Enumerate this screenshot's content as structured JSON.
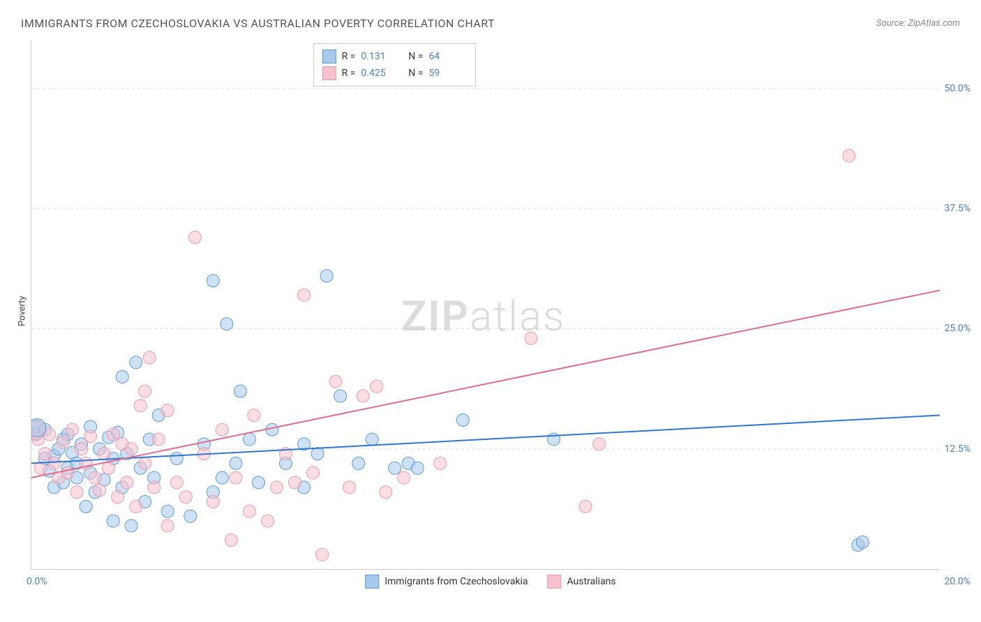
{
  "title": "IMMIGRANTS FROM CZECHOSLOVAKIA VS AUSTRALIAN POVERTY CORRELATION CHART",
  "source": "Source: ZipAtlas.com",
  "ylabel": "Poverty",
  "watermark_a": "ZIP",
  "watermark_b": "atlas",
  "chart": {
    "type": "scatter",
    "xlim": [
      0,
      20
    ],
    "ylim": [
      0,
      55
    ],
    "x_origin_label": "0.0%",
    "x_end_label": "20.0%",
    "y_ticks": [
      12.5,
      25.0,
      37.5,
      50.0
    ],
    "y_tick_labels": [
      "12.5%",
      "25.0%",
      "37.5%",
      "50.0%"
    ],
    "x_tick_positions": [
      2.5,
      5.0,
      7.5,
      10.0,
      12.5,
      15.0,
      17.5,
      20.0
    ],
    "grid_color": "#dddddd",
    "background_color": "#ffffff",
    "axis_color": "#cccccc",
    "tick_label_color": "#4a7ebb",
    "series": [
      {
        "name": "Immigrants from Czechoslovakia",
        "fill": "#a8c8ec",
        "stroke": "#5b9bd5",
        "fill_opacity": 0.55,
        "r_value": "0.131",
        "n_value": "64",
        "trend": {
          "x1": 0,
          "y1": 11.0,
          "x2": 20,
          "y2": 16.0,
          "color": "#2e75d6",
          "width": 2
        },
        "points": [
          [
            0.1,
            14.8
          ],
          [
            0.1,
            14.0
          ],
          [
            0.3,
            11.5
          ],
          [
            0.3,
            14.5
          ],
          [
            0.4,
            10.2
          ],
          [
            0.5,
            8.5
          ],
          [
            0.5,
            11.8
          ],
          [
            0.6,
            12.5
          ],
          [
            0.7,
            9.0
          ],
          [
            0.7,
            13.5
          ],
          [
            0.8,
            14.0
          ],
          [
            0.8,
            10.5
          ],
          [
            0.9,
            12.1
          ],
          [
            1.0,
            9.5
          ],
          [
            1.0,
            11.0
          ],
          [
            1.1,
            13.0
          ],
          [
            1.2,
            6.5
          ],
          [
            1.3,
            10.0
          ],
          [
            1.3,
            14.8
          ],
          [
            1.4,
            8.0
          ],
          [
            1.5,
            12.5
          ],
          [
            1.6,
            9.3
          ],
          [
            1.7,
            13.7
          ],
          [
            1.8,
            11.5
          ],
          [
            1.8,
            5.0
          ],
          [
            1.9,
            14.2
          ],
          [
            2.0,
            20.0
          ],
          [
            2.0,
            8.5
          ],
          [
            2.1,
            12.0
          ],
          [
            2.2,
            4.5
          ],
          [
            2.3,
            21.5
          ],
          [
            2.4,
            10.5
          ],
          [
            2.5,
            7.0
          ],
          [
            2.6,
            13.5
          ],
          [
            2.7,
            9.5
          ],
          [
            2.8,
            16.0
          ],
          [
            3.0,
            6.0
          ],
          [
            3.2,
            11.5
          ],
          [
            3.5,
            5.5
          ],
          [
            3.8,
            13.0
          ],
          [
            4.0,
            30.0
          ],
          [
            4.0,
            8.0
          ],
          [
            4.2,
            9.5
          ],
          [
            4.3,
            25.5
          ],
          [
            4.5,
            11.0
          ],
          [
            4.6,
            18.5
          ],
          [
            4.8,
            13.5
          ],
          [
            5.0,
            9.0
          ],
          [
            5.3,
            14.5
          ],
          [
            5.6,
            11.0
          ],
          [
            6.0,
            13.0
          ],
          [
            6.0,
            8.5
          ],
          [
            6.3,
            12.0
          ],
          [
            6.5,
            30.5
          ],
          [
            6.8,
            18.0
          ],
          [
            7.2,
            11.0
          ],
          [
            7.5,
            13.5
          ],
          [
            8.0,
            10.5
          ],
          [
            8.3,
            11.0
          ],
          [
            8.5,
            10.5
          ],
          [
            9.5,
            15.5
          ],
          [
            11.5,
            13.5
          ],
          [
            18.2,
            2.5
          ],
          [
            18.3,
            2.8
          ]
        ]
      },
      {
        "name": "Australians",
        "fill": "#f5c2cd",
        "stroke": "#e89aad",
        "fill_opacity": 0.55,
        "r_value": "0.425",
        "n_value": "59",
        "trend": {
          "x1": 0,
          "y1": 9.5,
          "x2": 20,
          "y2": 29.0,
          "color": "#e06b8f",
          "width": 2
        },
        "points": [
          [
            0.15,
            13.5
          ],
          [
            0.2,
            10.5
          ],
          [
            0.3,
            12.0
          ],
          [
            0.4,
            14.0
          ],
          [
            0.5,
            11.0
          ],
          [
            0.6,
            9.5
          ],
          [
            0.7,
            13.2
          ],
          [
            0.8,
            10.0
          ],
          [
            0.9,
            14.5
          ],
          [
            1.0,
            8.0
          ],
          [
            1.1,
            12.5
          ],
          [
            1.2,
            11.0
          ],
          [
            1.3,
            13.8
          ],
          [
            1.4,
            9.5
          ],
          [
            1.5,
            8.2
          ],
          [
            1.6,
            12.0
          ],
          [
            1.7,
            10.5
          ],
          [
            1.8,
            14.0
          ],
          [
            1.9,
            7.5
          ],
          [
            2.0,
            13.0
          ],
          [
            2.1,
            9.0
          ],
          [
            2.2,
            12.5
          ],
          [
            2.3,
            6.5
          ],
          [
            2.4,
            17.0
          ],
          [
            2.5,
            18.5
          ],
          [
            2.5,
            11.0
          ],
          [
            2.6,
            22.0
          ],
          [
            2.7,
            8.5
          ],
          [
            2.8,
            13.5
          ],
          [
            3.0,
            16.5
          ],
          [
            3.0,
            4.5
          ],
          [
            3.2,
            9.0
          ],
          [
            3.4,
            7.5
          ],
          [
            3.6,
            34.5
          ],
          [
            3.8,
            12.0
          ],
          [
            4.0,
            7.0
          ],
          [
            4.2,
            14.5
          ],
          [
            4.4,
            3.0
          ],
          [
            4.5,
            9.5
          ],
          [
            4.8,
            6.0
          ],
          [
            4.9,
            16.0
          ],
          [
            5.2,
            5.0
          ],
          [
            5.4,
            8.5
          ],
          [
            5.6,
            12.0
          ],
          [
            5.8,
            9.0
          ],
          [
            6.0,
            28.5
          ],
          [
            6.2,
            10.0
          ],
          [
            6.4,
            1.5
          ],
          [
            6.7,
            19.5
          ],
          [
            7.0,
            8.5
          ],
          [
            7.3,
            18.0
          ],
          [
            7.6,
            19.0
          ],
          [
            7.8,
            8.0
          ],
          [
            8.2,
            9.5
          ],
          [
            9.0,
            11.0
          ],
          [
            11.0,
            24.0
          ],
          [
            12.2,
            6.5
          ],
          [
            12.5,
            13.0
          ],
          [
            18.0,
            43.0
          ]
        ]
      }
    ]
  },
  "legend_bottom": [
    {
      "label": "Immigrants from Czechoslovakia",
      "fill": "#a8c8ec",
      "stroke": "#5b9bd5"
    },
    {
      "label": "Australians",
      "fill": "#f5c2cd",
      "stroke": "#e89aad"
    }
  ]
}
